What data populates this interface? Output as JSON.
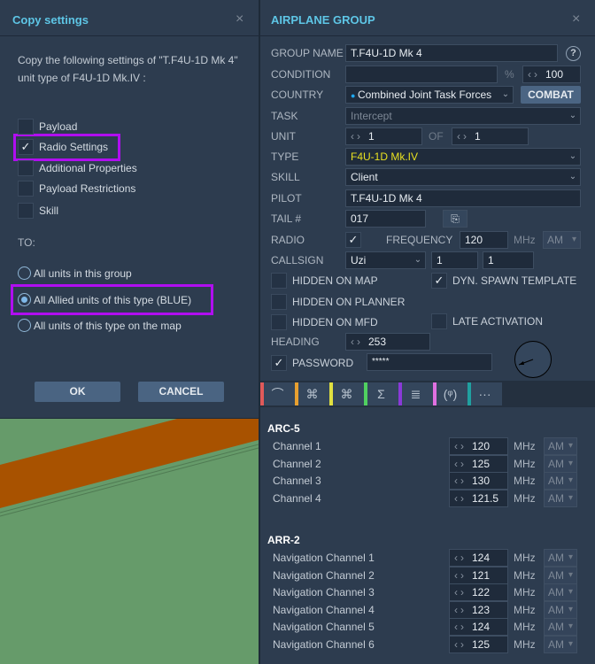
{
  "copy_dialog": {
    "title": "Copy settings",
    "close": "×",
    "description": "Copy the following settings of \"T.F4U-1D Mk 4\" unit type of F4U-1D Mk.IV :",
    "options": [
      {
        "label": "Payload",
        "checked": false
      },
      {
        "label": "Radio Settings",
        "checked": true
      },
      {
        "label": "Additional Properties",
        "checked": false
      },
      {
        "label": "Payload Restrictions",
        "checked": false
      },
      {
        "label": "Skill",
        "checked": false
      }
    ],
    "to_label": "TO:",
    "targets": [
      {
        "label": "All units in this group",
        "selected": false
      },
      {
        "label": "All Allied units of this type (BLUE)",
        "selected": true
      },
      {
        "label": "All units of this type on the map",
        "selected": false
      }
    ],
    "ok": "OK",
    "cancel": "CANCEL",
    "highlight_color": "#b00ef0"
  },
  "group_panel": {
    "title": "AIRPLANE GROUP",
    "close": "×",
    "group_name_label": "GROUP NAME",
    "group_name": "T.F4U-1D Mk 4",
    "help": "?",
    "condition_label": "CONDITION",
    "condition": "",
    "percent": "%",
    "condition_value": "100",
    "country_label": "COUNTRY",
    "country": "Combined Joint Task Forces",
    "combat": "COMBAT",
    "task_label": "TASK",
    "task": "Intercept",
    "unit_label": "UNIT",
    "unit": "1",
    "of_label": "OF",
    "of": "1",
    "type_label": "TYPE",
    "type": "F4U-1D Mk.IV",
    "skill_label": "SKILL",
    "skill": "Client",
    "pilot_label": "PILOT",
    "pilot": "T.F4U-1D Mk 4",
    "tail_label": "TAIL #",
    "tail": "017",
    "radio_label": "RADIO",
    "radio_checked": true,
    "frequency_label": "FREQUENCY",
    "frequency": "120",
    "mhz": "MHz",
    "modulation": "AM",
    "callsign_label": "CALLSIGN",
    "callsign": "Uzi",
    "callsign_n1": "1",
    "callsign_n2": "1",
    "hidden_on_map": "HIDDEN ON MAP",
    "dyn_spawn": "DYN. SPAWN TEMPLATE",
    "hidden_on_planner": "HIDDEN ON PLANNER",
    "hidden_on_mfd": "HIDDEN ON MFD",
    "late_activation": "LATE ACTIVATION",
    "heading_label": "HEADING",
    "heading": "253",
    "password_label": "PASSWORD",
    "password": "*****",
    "tabs": [
      {
        "icon": "route-icon",
        "glyph": "⌒",
        "color": "#e05a5a"
      },
      {
        "icon": "target-icon",
        "glyph": "⌘",
        "color": "#e8a030"
      },
      {
        "icon": "triggers-icon",
        "glyph": "⌘",
        "color": "#e0e040"
      },
      {
        "icon": "summary-icon",
        "glyph": "Σ",
        "color": "#50d060"
      },
      {
        "icon": "payload-icon",
        "glyph": "≣",
        "color": "#8a3ad8"
      },
      {
        "icon": "radio-icon",
        "glyph": "(ᵠ)",
        "color": "#e070e0"
      },
      {
        "icon": "more-icon",
        "glyph": "···",
        "color": "#20a0a0"
      }
    ],
    "radios": [
      {
        "name": "ARC-5",
        "channels": [
          {
            "label": "Channel 1",
            "freq": "120",
            "unit": "MHz",
            "mod": "AM"
          },
          {
            "label": "Channel 2",
            "freq": "125",
            "unit": "MHz",
            "mod": "AM"
          },
          {
            "label": "Channel 3",
            "freq": "130",
            "unit": "MHz",
            "mod": "AM"
          },
          {
            "label": "Channel 4",
            "freq": "121.5",
            "unit": "MHz",
            "mod": "AM"
          }
        ]
      },
      {
        "name": "ARR-2",
        "channels": [
          {
            "label": "Navigation Channel 1",
            "freq": "124",
            "unit": "MHz",
            "mod": "AM"
          },
          {
            "label": "Navigation Channel 2",
            "freq": "121",
            "unit": "MHz",
            "mod": "AM"
          },
          {
            "label": "Navigation Channel 3",
            "freq": "122",
            "unit": "MHz",
            "mod": "AM"
          },
          {
            "label": "Navigation Channel 4",
            "freq": "123",
            "unit": "MHz",
            "mod": "AM"
          },
          {
            "label": "Navigation Channel 5",
            "freq": "124",
            "unit": "MHz",
            "mod": "AM"
          },
          {
            "label": "Navigation Channel 6",
            "freq": "125",
            "unit": "MHz",
            "mod": "AM"
          }
        ]
      }
    ]
  }
}
